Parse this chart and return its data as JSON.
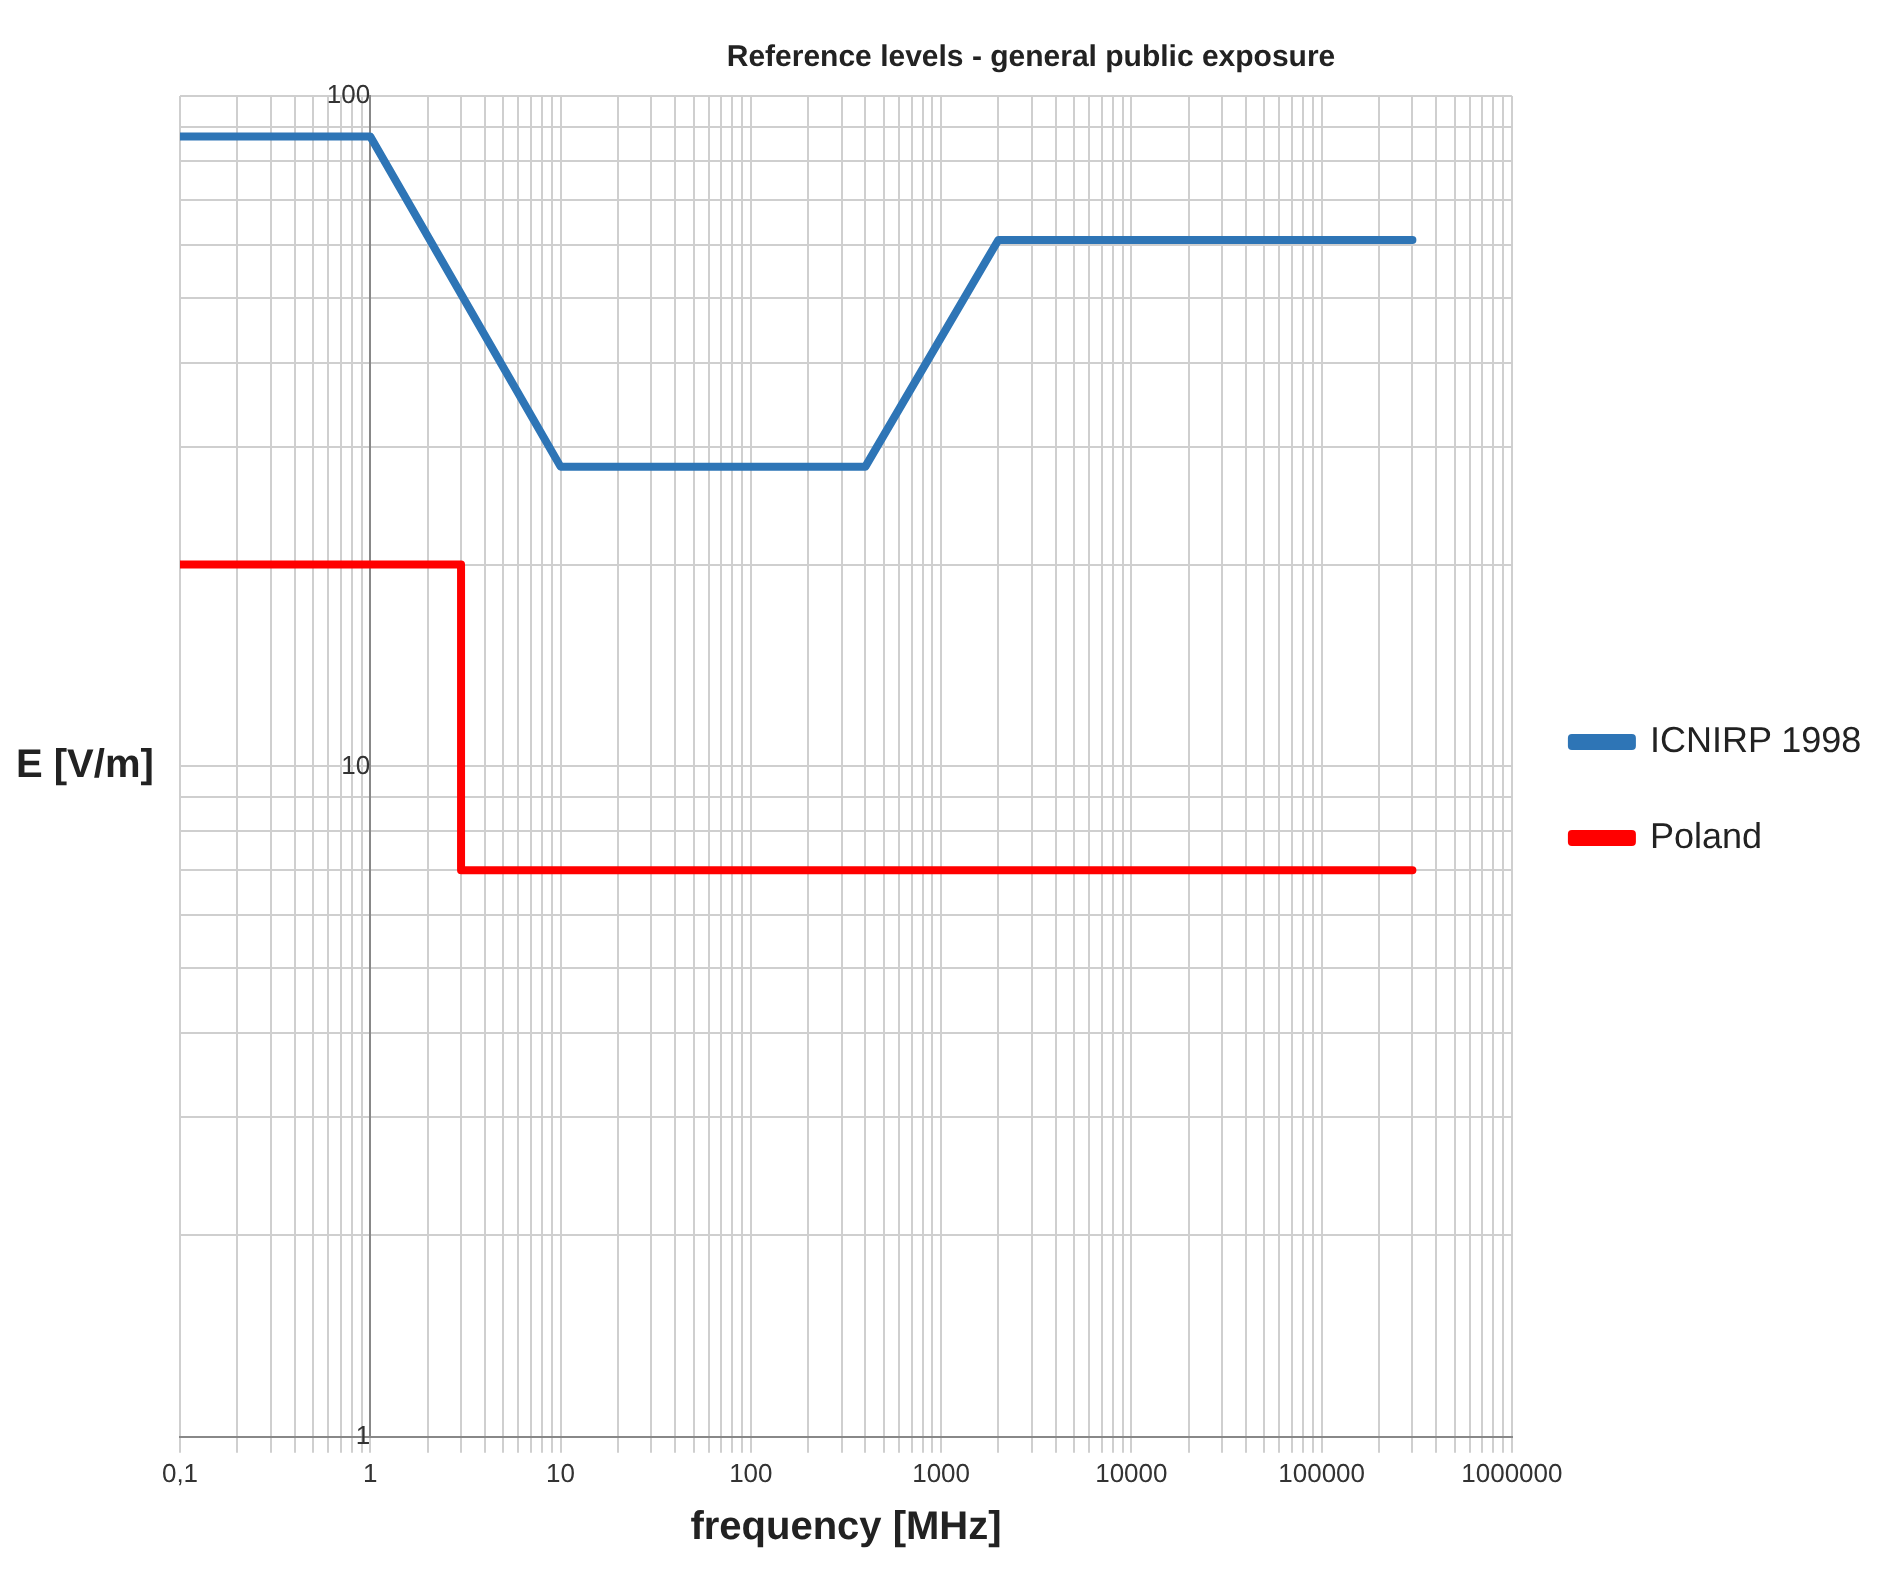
{
  "chart_data": {
    "type": "line",
    "title": "Reference levels - general public exposure",
    "xlabel": "frequency [MHz]",
    "ylabel": "E [V/m]",
    "log": "xy",
    "grid": true,
    "legend": "right",
    "marker": "none",
    "line_style": "solid",
    "xlim": [
      0.1,
      1000000
    ],
    "ylim": [
      1,
      100
    ],
    "xticks": [
      {
        "value": 0.1,
        "label": "0,1"
      },
      {
        "value": 0.2,
        "label": null
      },
      {
        "value": 0.3,
        "label": null
      },
      {
        "value": 0.4,
        "label": null
      },
      {
        "value": 0.5,
        "label": null
      },
      {
        "value": 0.6,
        "label": null
      },
      {
        "value": 0.7,
        "label": null
      },
      {
        "value": 0.8,
        "label": null
      },
      {
        "value": 0.9,
        "label": null
      },
      1,
      {
        "value": 2,
        "label": null
      },
      {
        "value": 3,
        "label": null
      },
      {
        "value": 4,
        "label": null
      },
      {
        "value": 5,
        "label": null
      },
      {
        "value": 6,
        "label": null
      },
      {
        "value": 7,
        "label": null
      },
      {
        "value": 8,
        "label": null
      },
      {
        "value": 9,
        "label": null
      },
      10,
      {
        "value": 20,
        "label": null
      },
      {
        "value": 30,
        "label": null
      },
      {
        "value": 40,
        "label": null
      },
      {
        "value": 50,
        "label": null
      },
      {
        "value": 60,
        "label": null
      },
      {
        "value": 70,
        "label": null
      },
      {
        "value": 80,
        "label": null
      },
      {
        "value": 90,
        "label": null
      },
      100,
      {
        "value": 200,
        "label": null
      },
      {
        "value": 300,
        "label": null
      },
      {
        "value": 400,
        "label": null
      },
      {
        "value": 500,
        "label": null
      },
      {
        "value": 600,
        "label": null
      },
      {
        "value": 700,
        "label": null
      },
      {
        "value": 800,
        "label": null
      },
      {
        "value": 900,
        "label": null
      },
      1000,
      {
        "value": 2000,
        "label": null
      },
      {
        "value": 3000,
        "label": null
      },
      {
        "value": 4000,
        "label": null
      },
      {
        "value": 5000,
        "label": null
      },
      {
        "value": 6000,
        "label": null
      },
      {
        "value": 7000,
        "label": null
      },
      {
        "value": 8000,
        "label": null
      },
      {
        "value": 9000,
        "label": null
      },
      10000,
      {
        "value": 20000,
        "label": null
      },
      {
        "value": 30000,
        "label": null
      },
      {
        "value": 40000,
        "label": null
      },
      {
        "value": 50000,
        "label": null
      },
      {
        "value": 60000,
        "label": null
      },
      {
        "value": 70000,
        "label": null
      },
      {
        "value": 80000,
        "label": null
      },
      {
        "value": 90000,
        "label": null
      },
      100000,
      {
        "value": 200000,
        "label": null
      },
      {
        "value": 300000,
        "label": null
      },
      {
        "value": 400000,
        "label": null
      },
      {
        "value": 500000,
        "label": null
      },
      {
        "value": 600000,
        "label": null
      },
      {
        "value": 700000,
        "label": null
      },
      {
        "value": 800000,
        "label": null
      },
      {
        "value": 900000,
        "label": null
      },
      1000000
    ],
    "yticks": [
      1,
      {
        "value": 2,
        "label": null
      },
      {
        "value": 3,
        "label": null
      },
      {
        "value": 4,
        "label": null
      },
      {
        "value": 5,
        "label": null
      },
      {
        "value": 6,
        "label": null
      },
      {
        "value": 7,
        "label": null
      },
      {
        "value": 8,
        "label": null
      },
      {
        "value": 9,
        "label": null
      },
      10,
      {
        "value": 20,
        "label": null
      },
      {
        "value": 30,
        "label": null
      },
      {
        "value": 40,
        "label": null
      },
      {
        "value": 50,
        "label": null
      },
      {
        "value": 60,
        "label": null
      },
      {
        "value": 70,
        "label": null
      },
      {
        "value": 80,
        "label": null
      },
      {
        "value": 90,
        "label": null
      },
      100
    ],
    "series": [
      {
        "name": "ICNIRP 1998",
        "color": "#2e75b6",
        "x": [
          0.1,
          1,
          10,
          400,
          2000,
          300000
        ],
        "values": [
          87,
          87,
          28,
          28,
          61,
          61
        ]
      },
      {
        "name": "Poland",
        "color": "#ff0000",
        "x": [
          0.1,
          3,
          3,
          300000
        ],
        "values": [
          20,
          20,
          7,
          7
        ]
      }
    ]
  }
}
